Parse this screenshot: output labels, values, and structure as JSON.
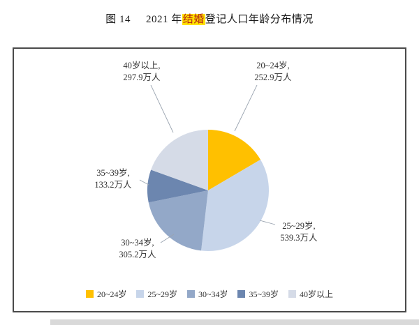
{
  "figure": {
    "title_prefix": "图 14",
    "title_pre": "2021 年",
    "title_highlight": "结婚",
    "title_suffix": "登记人口年龄分布情况",
    "highlight_bg": "#FFE100",
    "highlight_text_color": "#B42318"
  },
  "chart_data": {
    "type": "pie",
    "title": "2021 年结婚登记人口年龄分布情况",
    "unit": "万人",
    "categories": [
      "20~24岁",
      "25~29岁",
      "30~34岁",
      "35~39岁",
      "40岁以上"
    ],
    "values": [
      252.9,
      539.3,
      305.2,
      133.2,
      297.9
    ],
    "value_labels": [
      "252.9万人",
      "539.3万人",
      "305.2万人",
      "133.2万人",
      "297.9万人"
    ],
    "colors": [
      "#FFC000",
      "#C7D5EA",
      "#93A8C8",
      "#6C86AF",
      "#D5DBE7"
    ],
    "slice_label_lines": [
      [
        "20~24岁,",
        "252.9万人"
      ],
      [
        "25~29岁,",
        "539.3万人"
      ],
      [
        "30~34岁,",
        "305.2万人"
      ],
      [
        "35~39岁,",
        "133.2万人"
      ],
      [
        "40岁以上,",
        "297.9万人"
      ]
    ],
    "legend_position": "bottom",
    "start_angle_deg": 0,
    "direction": "clockwise",
    "frame_border_color": "#4A4A4A"
  }
}
